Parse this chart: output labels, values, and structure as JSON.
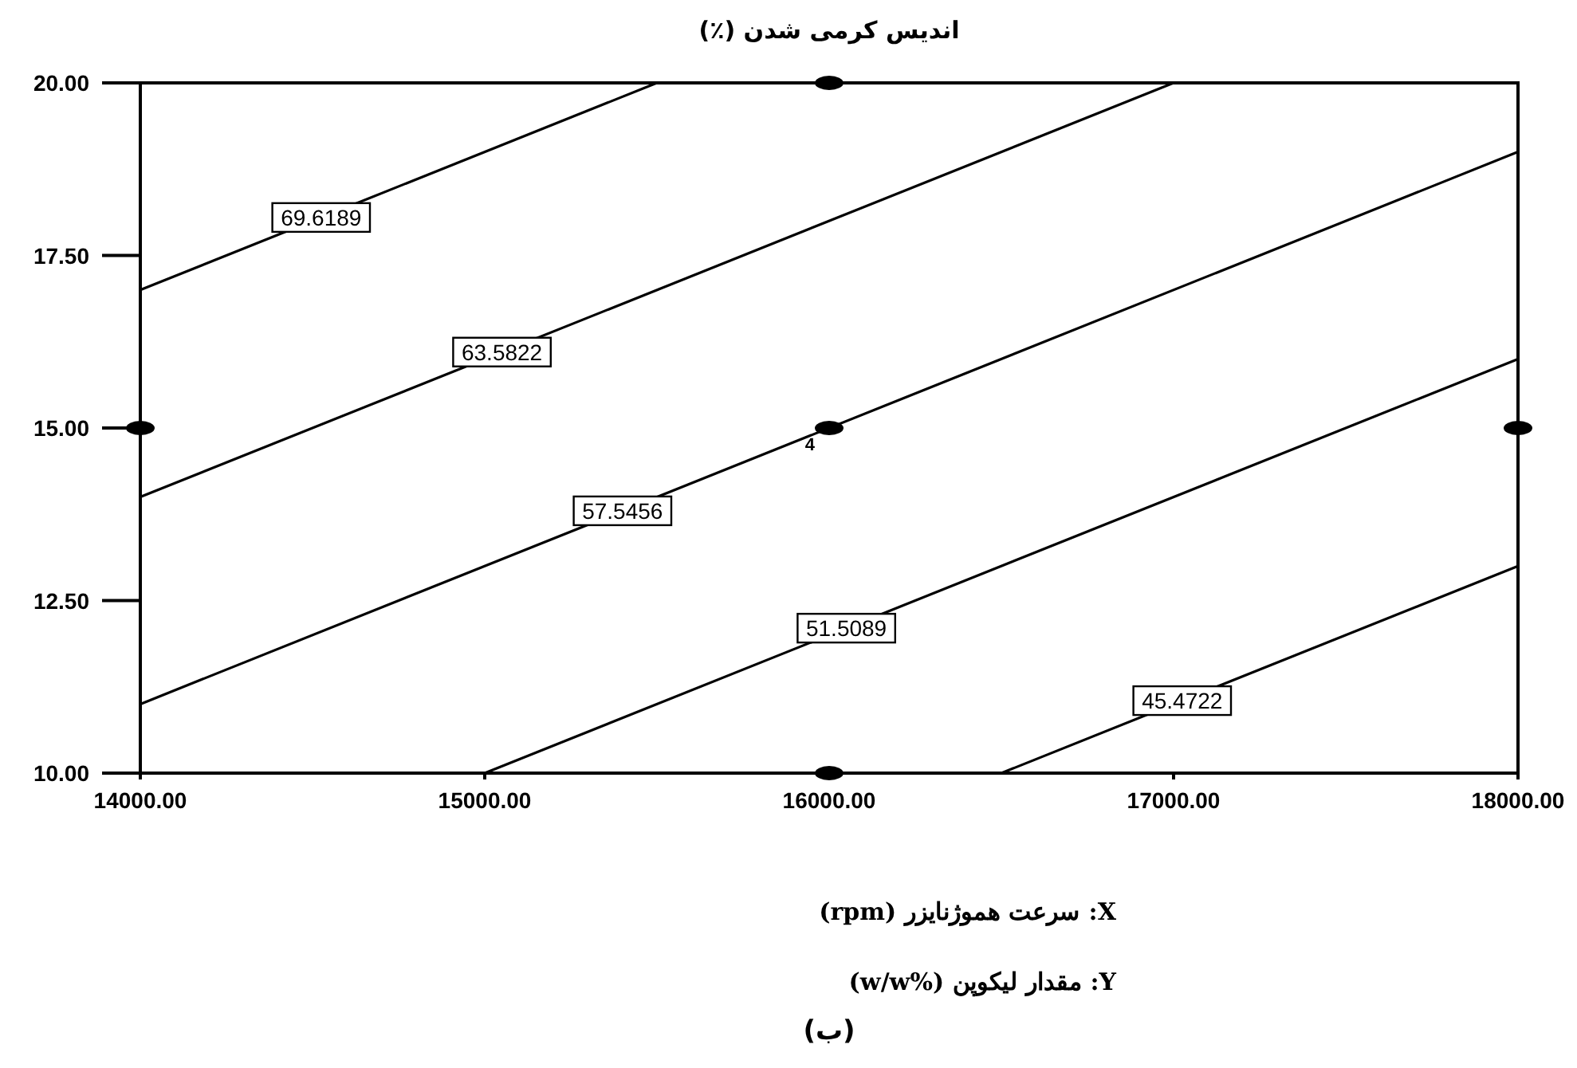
{
  "chart_data": {
    "type": "line",
    "title": "اندیس کرمی شدن (٪)",
    "xlabel": "X: سرعت هموژنایزر (rpm)",
    "xlim": [
      14000,
      18000
    ],
    "ylim": [
      10,
      20
    ],
    "xticks": [
      {
        "value": 14000,
        "label": "14000.00"
      },
      {
        "value": 15000,
        "label": "15000.00"
      },
      {
        "value": 16000,
        "label": "16000.00"
      },
      {
        "value": 17000,
        "label": "17000.00"
      },
      {
        "value": 18000,
        "label": "18000.00"
      }
    ],
    "yticks": [
      {
        "value": 10,
        "label": "10.00"
      },
      {
        "value": 12.5,
        "label": "12.50"
      },
      {
        "value": 15,
        "label": "15.00"
      },
      {
        "value": 17.5,
        "label": "17.50"
      },
      {
        "value": 20,
        "label": "20.00"
      }
    ],
    "grid": false,
    "marker": "none",
    "line_style": "solid",
    "series": [
      {
        "name": "69.6189",
        "color": "#000000",
        "x": [
          14000,
          15500
        ],
        "values": [
          17,
          20
        ]
      },
      {
        "name": "63.5822",
        "color": "#000000",
        "x": [
          14000,
          17000
        ],
        "values": [
          14,
          20
        ]
      },
      {
        "name": "57.5456",
        "color": "#000000",
        "x": [
          14000,
          18000
        ],
        "values": [
          11,
          19
        ]
      },
      {
        "name": "51.5089",
        "color": "#000000",
        "x": [
          15000,
          18000
        ],
        "values": [
          10,
          16
        ]
      },
      {
        "name": "45.4722",
        "color": "#000000",
        "x": [
          16500,
          18000
        ],
        "values": [
          10,
          13
        ]
      },
      {
        "type": "scatter",
        "marker": "circle",
        "color": "#000000",
        "x": [
          16000,
          14000,
          16000,
          18000,
          16000
        ],
        "values": [
          20,
          15,
          15,
          15,
          10
        ]
      }
    ],
    "annotations": [
      {
        "text": "4",
        "x": 16000,
        "y": 15
      },
      "Y: مقدار لیکوپن (%w/w)",
      "(ب)"
    ]
  }
}
